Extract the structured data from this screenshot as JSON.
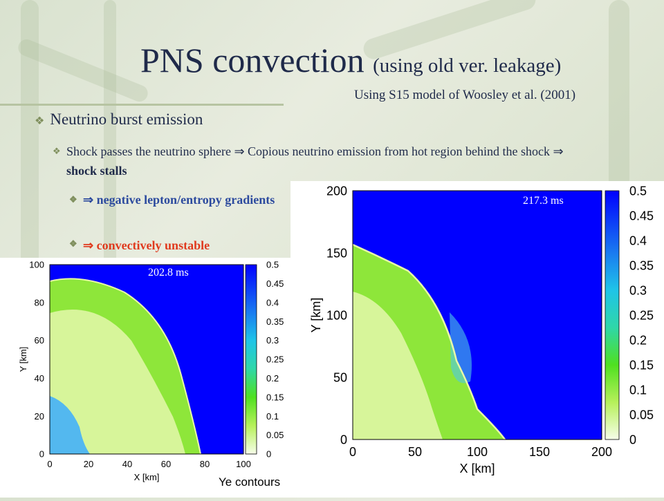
{
  "slide": {
    "title_main": "PNS convection",
    "title_sub": "(using old ver. leakage)",
    "source_note": "Using S15 model of Woosley et al. (2001)",
    "bullet1": "Neutrino burst emission",
    "bullet2_part1": "Shock passes the neutrino sphere ⇒ Copious neutrino emission from hot region behind the shock ⇒ ",
    "bullet2_bold": "shock stalls",
    "bullet3": "⇒ negative lepton/entropy gradients",
    "bullet4": "⇒ convectively unstable",
    "diamond": "❖",
    "colors": {
      "title": "#1f2a4a",
      "blue_text": "#2c4a9e",
      "red_text": "#e03a1e",
      "plot_background": "#0000ff",
      "plot_interior": "#99e62a"
    }
  },
  "plot_left": {
    "time_label": "202.8 ms",
    "xlabel": "X [km]",
    "ylabel": "Y [km]",
    "xticks": [
      "0",
      "20",
      "40",
      "60",
      "80",
      "100"
    ],
    "yticks": [
      "0",
      "20",
      "40",
      "60",
      "80",
      "100"
    ],
    "colorbar_ticks": [
      "0.5",
      "0.45",
      "0.4",
      "0.35",
      "0.3",
      "0.25",
      "0.2",
      "0.15",
      "0.1",
      "0.05",
      "0"
    ],
    "footer_label": "Ye contours"
  },
  "plot_right": {
    "time_label": "217.3 ms",
    "xlabel": "X [km]",
    "ylabel": "Y [km]",
    "xticks": [
      "0",
      "50",
      "100",
      "150",
      "200"
    ],
    "yticks": [
      "0",
      "50",
      "100",
      "150",
      "200"
    ],
    "colorbar_ticks": [
      "0.5",
      "0.45",
      "0.4",
      "0.35",
      "0.3",
      "0.25",
      "0.2",
      "0.15",
      "0.1",
      "0.05",
      "0"
    ]
  }
}
